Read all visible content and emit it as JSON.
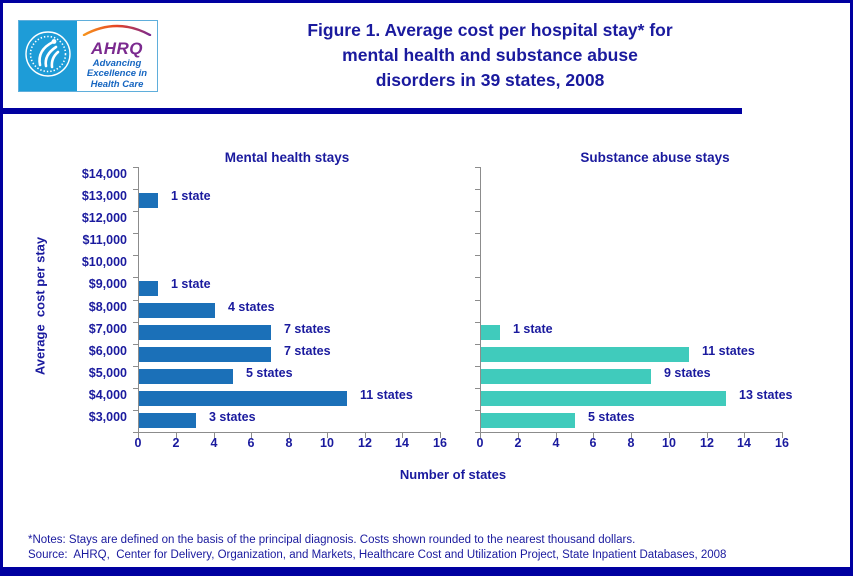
{
  "header": {
    "title_line1": "Figure 1. Average cost per hospital stay* for",
    "title_line2": "mental health and substance abuse",
    "title_line3": "disorders in 39 states, 2008",
    "logo": {
      "org_abbr": "AHRQ",
      "tagline": "Advancing\nExcellence in\nHealth Care"
    }
  },
  "chart_data": {
    "type": "bar",
    "orientation": "horizontal",
    "categories": [
      "$14,000",
      "$13,000",
      "$12,000",
      "$11,000",
      "$10,000",
      "$9,000",
      "$8,000",
      "$7,000",
      "$6,000",
      "$5,000",
      "$4,000",
      "$3,000"
    ],
    "series": [
      {
        "name": "Mental health stays",
        "color": "#1B70B8",
        "values": [
          0,
          1,
          0,
          0,
          0,
          1,
          4,
          7,
          7,
          5,
          11,
          3
        ],
        "labels": [
          "",
          "1 state",
          "",
          "",
          "",
          "1 state",
          "4 states",
          "7 states",
          "7 states",
          "5 states",
          "11 states",
          "3 states"
        ]
      },
      {
        "name": "Substance abuse stays",
        "color": "#40CBBC",
        "values": [
          0,
          0,
          0,
          0,
          0,
          0,
          0,
          1,
          11,
          9,
          13,
          5
        ],
        "labels": [
          "",
          "",
          "",
          "",
          "",
          "",
          "",
          "1 state",
          "11 states",
          "9 states",
          "13 states",
          "5 states"
        ]
      }
    ],
    "xlabel": "Number of states",
    "ylabel": "Average  cost per stay",
    "xlim": [
      0,
      16
    ],
    "xticks": [
      0,
      2,
      4,
      6,
      8,
      10,
      12,
      14,
      16
    ],
    "grid": false,
    "total_states": 39
  },
  "notes": {
    "line1": "*Notes: Stays are defined on the basis of the principal diagnosis. Costs shown rounded to the nearest thousand dollars.",
    "line2": "Source:  AHRQ,  Center for Delivery, Organization, and Markets, Healthcare Cost and Utilization Project, State Inpatient Databases, 2008"
  },
  "colors": {
    "navy_text": "#1A1A9E",
    "border_navy": "#0000A0",
    "bar_blue": "#1B70B8",
    "bar_teal": "#40CBBC",
    "axis_gray": "#8C8C8C",
    "logo_panel_blue": "#1E9CD7",
    "ahrq_purple": "#7B2A8F",
    "tagline_blue": "#1565C0"
  }
}
